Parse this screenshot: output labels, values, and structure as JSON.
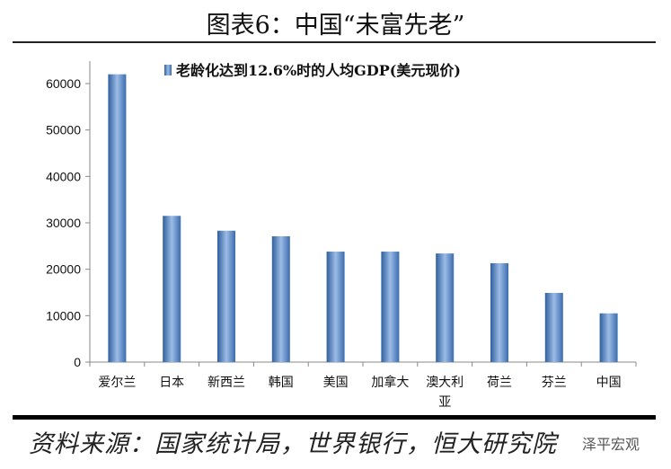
{
  "title": "图表6：中国“未富先老”",
  "source": "资料来源：国家统计局，世界银行，恒大研究院",
  "watermark": "泽平宏观",
  "chart_data": {
    "type": "bar",
    "title": "",
    "legend": "老龄化达到12.6%时的人均GDP(美元现价)",
    "legend_position": "top",
    "categories": [
      "爱尔兰",
      "日本",
      "新西兰",
      "韩国",
      "美国",
      "加拿大",
      "澳大利亚",
      "荷兰",
      "芬兰",
      "中国"
    ],
    "values": [
      62000,
      31500,
      28300,
      27100,
      23800,
      23800,
      23400,
      21300,
      14900,
      10500
    ],
    "ylim": [
      0,
      60000
    ],
    "yticks": [
      0,
      10000,
      20000,
      30000,
      40000,
      50000,
      60000
    ],
    "grid": false,
    "bar_color": "#4a7ebb"
  }
}
